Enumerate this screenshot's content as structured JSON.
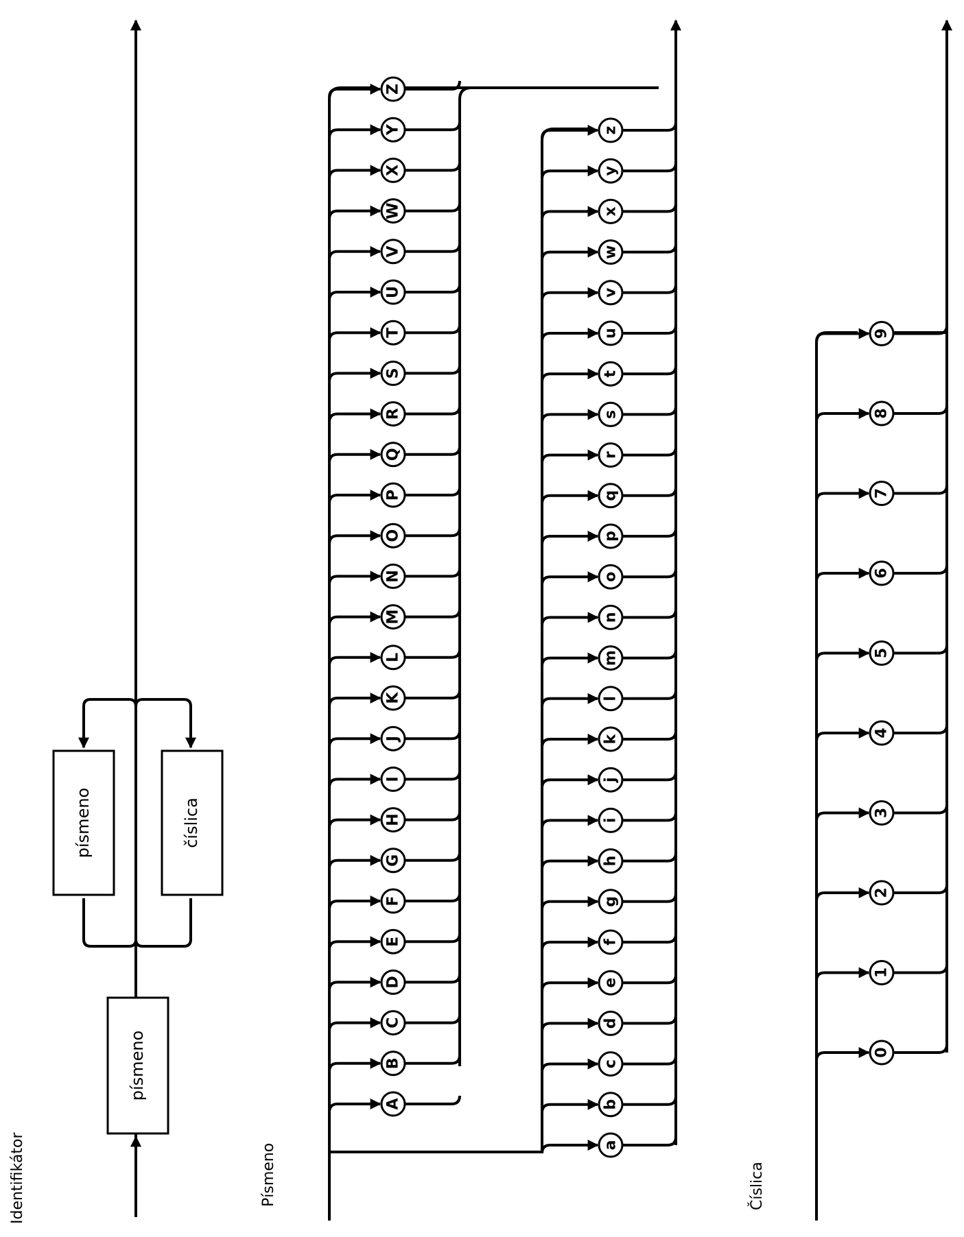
{
  "colors": {
    "line": "#000000",
    "background": "#ffffff"
  },
  "identifikator": {
    "title": "Identifikátor",
    "first_box": "písmeno",
    "loop_box_top": "písmeno",
    "loop_box_bottom": "číslica"
  },
  "pismeno": {
    "title": "Písmeno",
    "uppercase": [
      "A",
      "B",
      "C",
      "D",
      "E",
      "F",
      "G",
      "H",
      "I",
      "J",
      "K",
      "L",
      "M",
      "N",
      "O",
      "P",
      "Q",
      "R",
      "S",
      "T",
      "U",
      "V",
      "W",
      "X",
      "Y",
      "Z"
    ],
    "lowercase": [
      "a",
      "b",
      "c",
      "d",
      "e",
      "f",
      "g",
      "h",
      "i",
      "j",
      "k",
      "l",
      "m",
      "n",
      "o",
      "p",
      "q",
      "r",
      "s",
      "t",
      "u",
      "v",
      "w",
      "x",
      "y",
      "z"
    ]
  },
  "cislica": {
    "title": "Číslica",
    "digits": [
      "0",
      "1",
      "2",
      "3",
      "4",
      "5",
      "6",
      "7",
      "8",
      "9"
    ]
  }
}
